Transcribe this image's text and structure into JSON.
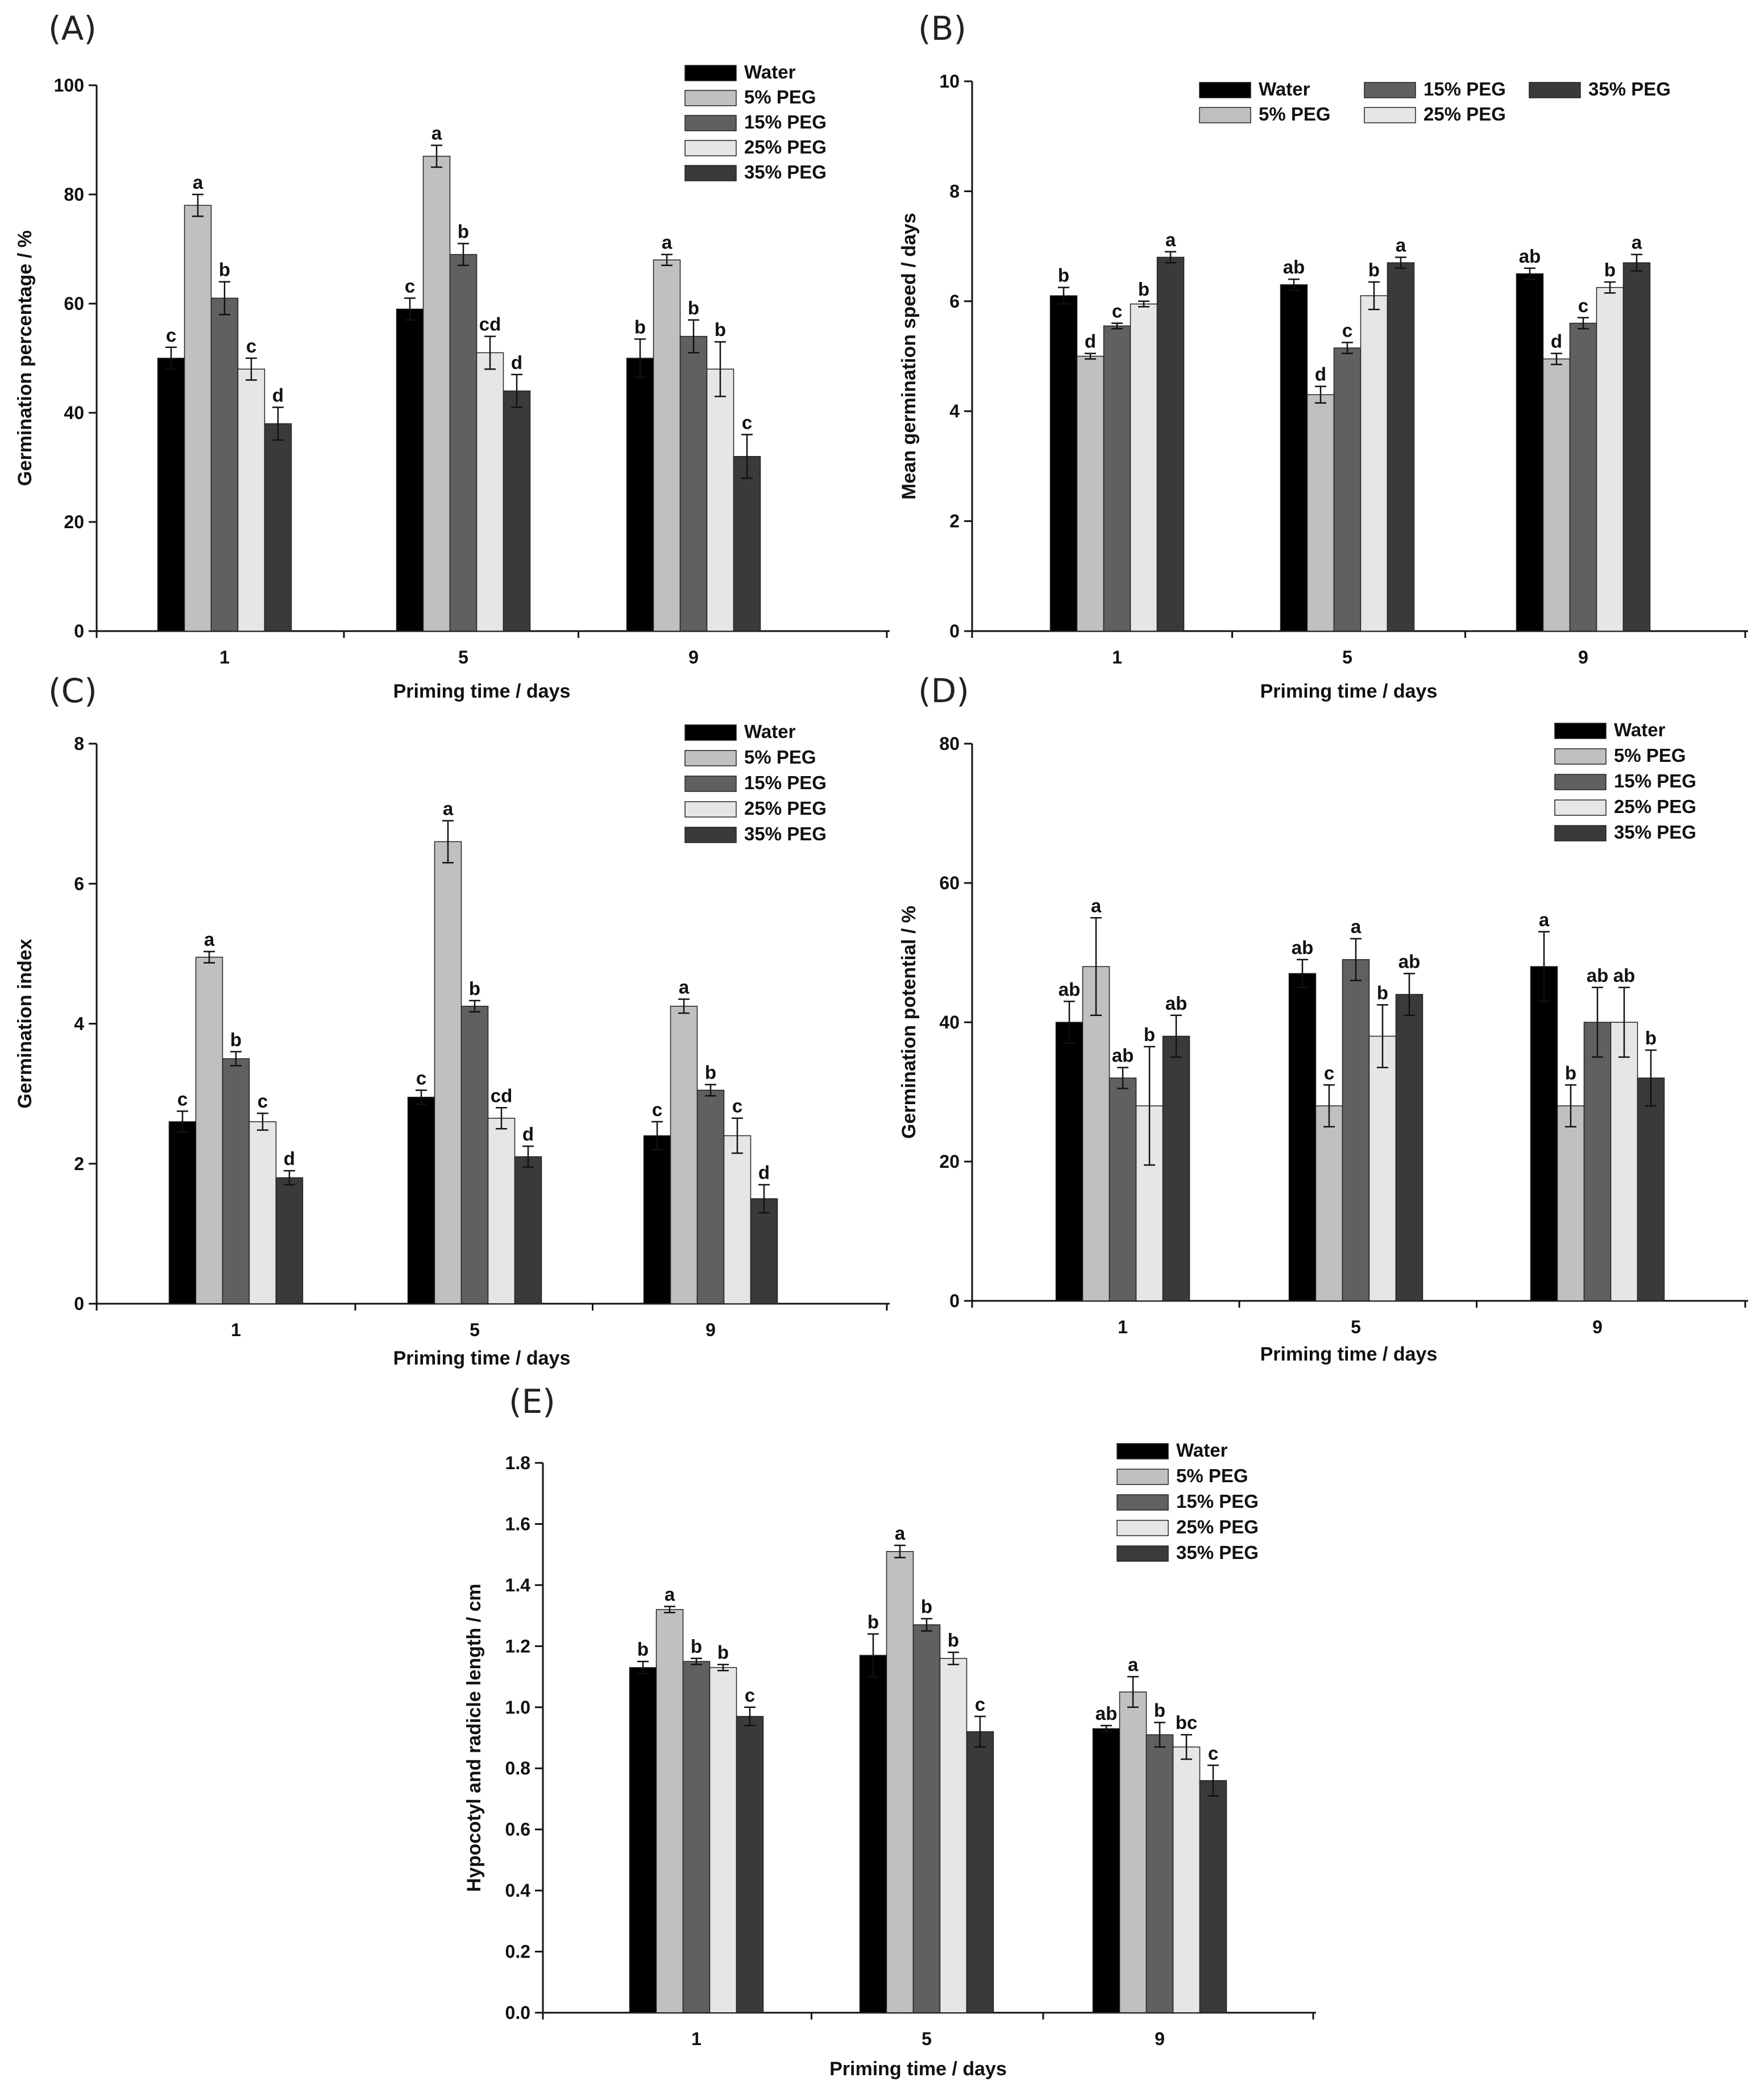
{
  "figure": {
    "groups": [
      "Water",
      "5% PEG",
      "15% PEG",
      "25% PEG",
      "35% PEG"
    ],
    "group_colors": [
      "#000000",
      "#c0c0c0",
      "#606060",
      "#e6e6e6",
      "#3a3a3a"
    ]
  },
  "chart_data": [
    {
      "id": "A",
      "panel_label": "(A)",
      "type": "bar",
      "title": "",
      "xlabel": "Priming time / days",
      "ylabel": "Germination percentage / %",
      "categories": [
        "1",
        "5",
        "9"
      ],
      "ylim": [
        0,
        100
      ],
      "yticks": [
        "0",
        "20",
        "40",
        "60",
        "80",
        "100"
      ],
      "legend": "top-right",
      "series": [
        {
          "name": "Water",
          "values": [
            50,
            59,
            50
          ],
          "errors": [
            2,
            2,
            3.5
          ],
          "letters": [
            "c",
            "c",
            "b"
          ]
        },
        {
          "name": "5% PEG",
          "values": [
            78,
            87,
            68
          ],
          "errors": [
            2,
            2,
            1
          ],
          "letters": [
            "a",
            "a",
            "a"
          ]
        },
        {
          "name": "15% PEG",
          "values": [
            61,
            69,
            54
          ],
          "errors": [
            3,
            2,
            3
          ],
          "letters": [
            "b",
            "b",
            "b"
          ]
        },
        {
          "name": "25% PEG",
          "values": [
            48,
            51,
            48
          ],
          "errors": [
            2,
            3,
            5
          ],
          "letters": [
            "c",
            "cd",
            "b"
          ]
        },
        {
          "name": "35% PEG",
          "values": [
            38,
            44,
            32
          ],
          "errors": [
            3,
            3,
            4
          ],
          "letters": [
            "d",
            "d",
            "c"
          ]
        }
      ]
    },
    {
      "id": "B",
      "panel_label": "(B)",
      "type": "bar",
      "title": "",
      "xlabel": "Priming time / days",
      "ylabel": "Mean germination speed / days",
      "categories": [
        "1",
        "5",
        "9"
      ],
      "ylim": [
        0,
        10
      ],
      "yticks": [
        "0",
        "2",
        "4",
        "6",
        "8",
        "10"
      ],
      "legend": "top-right",
      "series": [
        {
          "name": "Water",
          "values": [
            6.1,
            6.3,
            6.5
          ],
          "errors": [
            0.15,
            0.1,
            0.1
          ],
          "letters": [
            "b",
            "ab",
            "ab"
          ]
        },
        {
          "name": "5% PEG",
          "values": [
            5.0,
            4.3,
            4.95
          ],
          "errors": [
            0.05,
            0.15,
            0.1
          ],
          "letters": [
            "d",
            "d",
            "d"
          ]
        },
        {
          "name": "15% PEG",
          "values": [
            5.55,
            5.15,
            5.6
          ],
          "errors": [
            0.05,
            0.1,
            0.1
          ],
          "letters": [
            "c",
            "c",
            "c"
          ]
        },
        {
          "name": "25% PEG",
          "values": [
            5.95,
            6.1,
            6.25
          ],
          "errors": [
            0.05,
            0.25,
            0.1
          ],
          "letters": [
            "b",
            "b",
            "b"
          ]
        },
        {
          "name": "35% PEG",
          "values": [
            6.8,
            6.7,
            6.7
          ],
          "errors": [
            0.1,
            0.1,
            0.15
          ],
          "letters": [
            "a",
            "a",
            "a"
          ]
        }
      ]
    },
    {
      "id": "C",
      "panel_label": "(C)",
      "type": "bar",
      "title": "",
      "xlabel": "Priming time / days",
      "ylabel": "Germination index",
      "categories": [
        "1",
        "5",
        "9"
      ],
      "ylim": [
        0,
        8
      ],
      "yticks": [
        "0",
        "2",
        "4",
        "6",
        "8"
      ],
      "legend": "top-right",
      "series": [
        {
          "name": "Water",
          "values": [
            2.6,
            2.95,
            2.4
          ],
          "errors": [
            0.15,
            0.1,
            0.2
          ],
          "letters": [
            "c",
            "c",
            "c"
          ]
        },
        {
          "name": "5% PEG",
          "values": [
            4.95,
            6.6,
            4.25
          ],
          "errors": [
            0.08,
            0.3,
            0.1
          ],
          "letters": [
            "a",
            "a",
            "a"
          ]
        },
        {
          "name": "15% PEG",
          "values": [
            3.5,
            4.25,
            3.05
          ],
          "errors": [
            0.1,
            0.08,
            0.08
          ],
          "letters": [
            "b",
            "b",
            "b"
          ]
        },
        {
          "name": "25% PEG",
          "values": [
            2.6,
            2.65,
            2.4
          ],
          "errors": [
            0.12,
            0.15,
            0.25
          ],
          "letters": [
            "c",
            "cd",
            "c"
          ]
        },
        {
          "name": "35% PEG",
          "values": [
            1.8,
            2.1,
            1.5
          ],
          "errors": [
            0.1,
            0.15,
            0.2
          ],
          "letters": [
            "d",
            "d",
            "d"
          ]
        }
      ]
    },
    {
      "id": "D",
      "panel_label": "(D)",
      "type": "bar",
      "title": "",
      "xlabel": "Priming time / days",
      "ylabel": "Germination potential / %",
      "categories": [
        "1",
        "5",
        "9"
      ],
      "ylim": [
        0,
        80
      ],
      "yticks": [
        "0",
        "20",
        "40",
        "60",
        "80"
      ],
      "legend": "top-right",
      "series": [
        {
          "name": "Water",
          "values": [
            40,
            47,
            48
          ],
          "errors": [
            3,
            2,
            5
          ],
          "letters": [
            "ab",
            "ab",
            "a"
          ]
        },
        {
          "name": "5% PEG",
          "values": [
            48,
            28,
            28
          ],
          "errors": [
            7,
            3,
            3
          ],
          "letters": [
            "a",
            "c",
            "b"
          ]
        },
        {
          "name": "15% PEG",
          "values": [
            32,
            49,
            40
          ],
          "errors": [
            1.5,
            3,
            5
          ],
          "letters": [
            "ab",
            "a",
            "ab"
          ]
        },
        {
          "name": "25% PEG",
          "values": [
            28,
            38,
            40
          ],
          "errors": [
            8.5,
            4.5,
            5
          ],
          "letters": [
            "b",
            "b",
            "ab"
          ]
        },
        {
          "name": "35% PEG",
          "values": [
            38,
            44,
            32
          ],
          "errors": [
            3,
            3,
            4
          ],
          "letters": [
            "ab",
            "ab",
            "b"
          ]
        }
      ]
    },
    {
      "id": "E",
      "panel_label": "(E)",
      "type": "bar",
      "title": "",
      "xlabel": "Priming time / days",
      "ylabel": "Hypocotyl and radicle length / cm",
      "categories": [
        "1",
        "5",
        "9"
      ],
      "ylim": [
        0,
        1.8
      ],
      "yticks": [
        "0.0",
        "0.2",
        "0.4",
        "0.6",
        "0.8",
        "1.0",
        "1.2",
        "1.4",
        "1.6",
        "1.8"
      ],
      "legend": "top-right",
      "series": [
        {
          "name": "Water",
          "values": [
            1.13,
            1.17,
            0.93
          ],
          "errors": [
            0.02,
            0.07,
            0.01
          ],
          "letters": [
            "b",
            "b",
            "ab"
          ]
        },
        {
          "name": "5% PEG",
          "values": [
            1.32,
            1.51,
            1.05
          ],
          "errors": [
            0.01,
            0.02,
            0.05
          ],
          "letters": [
            "a",
            "a",
            "a"
          ]
        },
        {
          "name": "15% PEG",
          "values": [
            1.15,
            1.27,
            0.91
          ],
          "errors": [
            0.01,
            0.02,
            0.04
          ],
          "letters": [
            "b",
            "b",
            "b"
          ]
        },
        {
          "name": "25% PEG",
          "values": [
            1.13,
            1.16,
            0.87
          ],
          "errors": [
            0.01,
            0.02,
            0.04
          ],
          "letters": [
            "b",
            "b",
            "bc"
          ]
        },
        {
          "name": "35% PEG",
          "values": [
            0.97,
            0.92,
            0.76
          ],
          "errors": [
            0.03,
            0.05,
            0.05
          ],
          "letters": [
            "c",
            "c",
            "c"
          ]
        }
      ]
    }
  ]
}
